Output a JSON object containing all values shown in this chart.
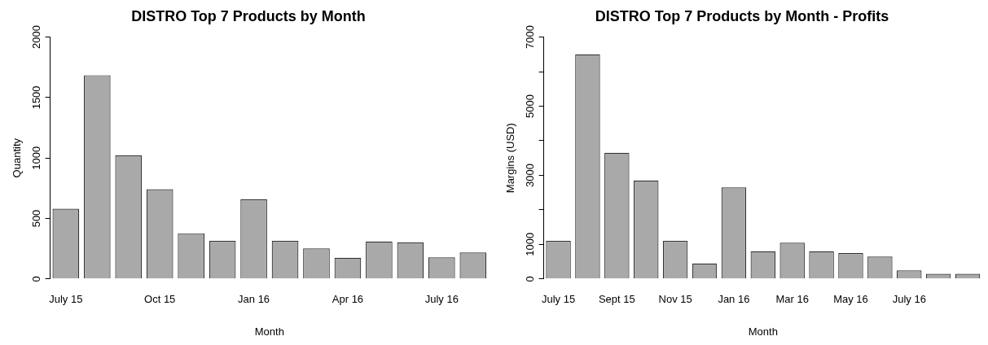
{
  "chart_data": [
    {
      "type": "bar",
      "title": "DISTRO Top 7 Products by Month",
      "xlabel": "Month",
      "ylabel": "Quantity",
      "categories": [
        "July 15",
        null,
        null,
        "Oct 15",
        null,
        null,
        "Jan 16",
        null,
        null,
        "Apr 16",
        null,
        null,
        "July 16",
        null
      ],
      "values": [
        581,
        1685,
        1022,
        742,
        378,
        315,
        658,
        315,
        252,
        175,
        310,
        301,
        178,
        219
      ],
      "color": "#a9a9a9",
      "ylim": [
        0,
        2000
      ],
      "yticks": [
        0,
        500,
        1000,
        1500,
        2000
      ]
    },
    {
      "type": "bar",
      "title": "DISTRO Top 7 Products by Month - Profits",
      "xlabel": "Month",
      "ylabel": "Margins (USD)",
      "categories": [
        "July 15",
        null,
        "Sept 15",
        null,
        "Nov 15",
        null,
        "Jan 16",
        null,
        "Mar 16",
        null,
        "May 16",
        null,
        "July 16",
        null,
        null
      ],
      "values": [
        1100,
        6500,
        3650,
        2850,
        1100,
        450,
        2650,
        800,
        1050,
        800,
        750,
        650,
        250,
        150,
        150
      ],
      "color": "#a9a9a9",
      "ylim": [
        0,
        7000
      ],
      "yticks": [
        0,
        1000,
        {
          "value": 2000,
          "label": null
        },
        3000,
        {
          "value": 4000,
          "label": null
        },
        5000,
        {
          "value": 6000,
          "label": null
        },
        7000
      ]
    }
  ]
}
